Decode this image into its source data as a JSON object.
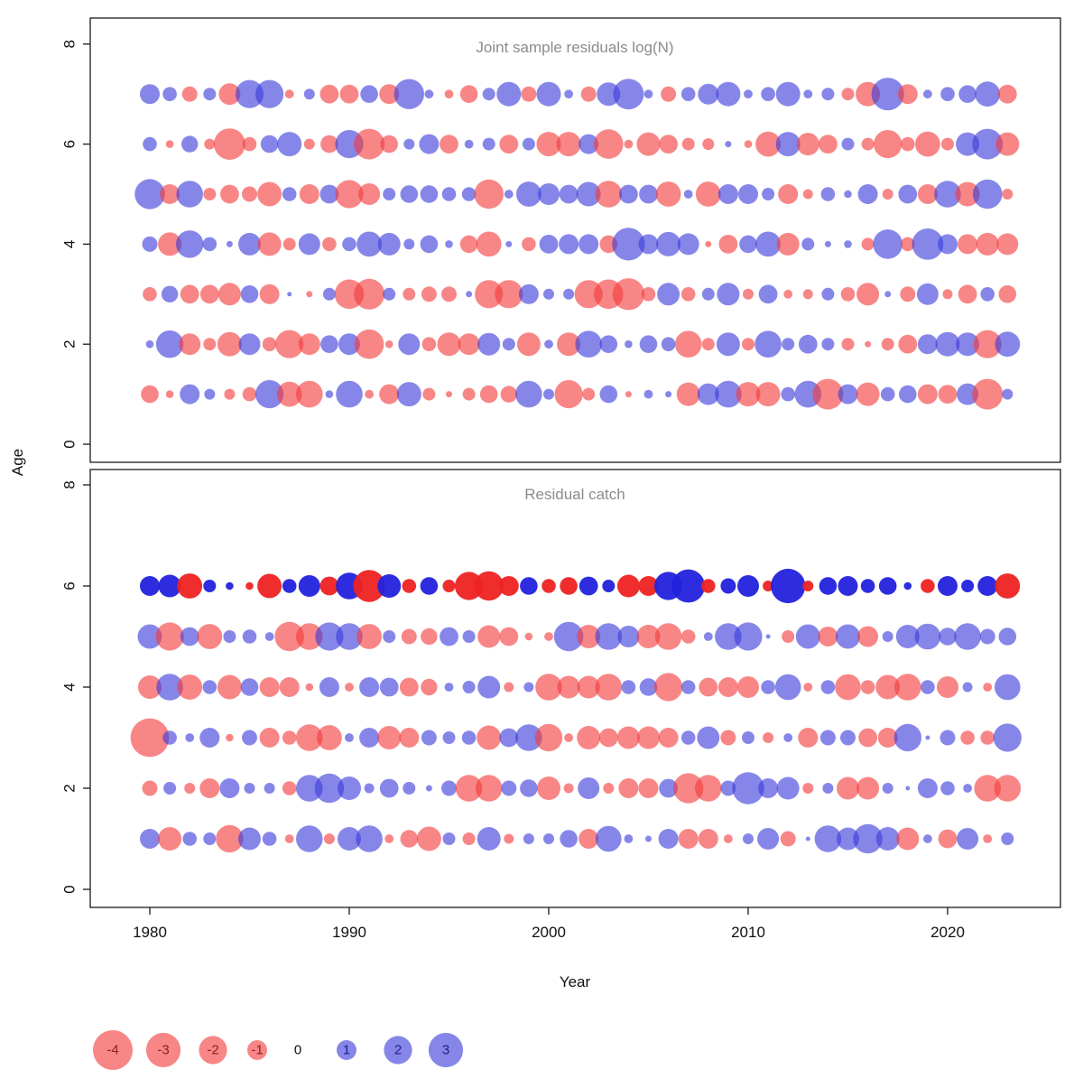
{
  "figure": {
    "xlabel": "Year",
    "ylabel": "Age",
    "xticks": [
      1980,
      1990,
      2000,
      2010,
      2020
    ],
    "yticks": [
      0,
      2,
      4,
      6,
      8
    ]
  },
  "colors": {
    "negative": "#f43b3b",
    "positive": "#3c3cdc",
    "negative_solid": "#ee2222",
    "positive_solid": "#2222dd",
    "bubble_alpha": 0.62,
    "solid_alpha": 0.95,
    "title_gray": "#8c8c8c",
    "legend_negative_text": "#8b1e1e",
    "legend_positive_text": "#1e1e8b",
    "legend_zero_text": "#111111"
  },
  "legend": {
    "items": [
      {
        "label": "-4",
        "value": -4
      },
      {
        "label": "-3",
        "value": -3
      },
      {
        "label": "-2",
        "value": -2
      },
      {
        "label": "-1",
        "value": -1
      },
      {
        "label": "0",
        "value": 0
      },
      {
        "label": "1",
        "value": 1
      },
      {
        "label": "2",
        "value": 2
      },
      {
        "label": "3",
        "value": 3
      }
    ],
    "radius_rule": "radius_px = 11 * sqrt(abs(value))"
  },
  "chart_data": [
    {
      "type": "bubble",
      "title": "Joint sample residuals log(N)",
      "xlabel": "Year",
      "ylabel": "Age",
      "ylim": [
        0,
        8
      ],
      "x": [
        1980,
        1981,
        1982,
        1983,
        1984,
        1985,
        1986,
        1987,
        1988,
        1989,
        1990,
        1991,
        1992,
        1993,
        1994,
        1995,
        1996,
        1997,
        1998,
        1999,
        2000,
        2001,
        2002,
        2003,
        2004,
        2005,
        2006,
        2007,
        2008,
        2009,
        2010,
        2011,
        2012,
        2013,
        2014,
        2015,
        2016,
        2017,
        2018,
        2019,
        2020,
        2021,
        2022,
        2023
      ],
      "series": [
        {
          "name": "age-7",
          "age": 7,
          "values": [
            1,
            0.5,
            -0.6,
            0.4,
            -1.2,
            2,
            2,
            -0.2,
            0.3,
            -0.9,
            -0.9,
            0.8,
            -1,
            2.3,
            0.2,
            -0.2,
            -0.8,
            0.4,
            1.5,
            -0.6,
            1.5,
            0.2,
            -0.6,
            1.4,
            2.4,
            0.2,
            -0.6,
            0.5,
            1.1,
            1.5,
            0.2,
            0.5,
            1.5,
            0.2,
            0.4,
            -0.4,
            -1.5,
            2.7,
            -1,
            0.2,
            0.5,
            0.8,
            1.6,
            -0.9
          ]
        },
        {
          "name": "age-6",
          "age": 6,
          "values": [
            0.5,
            -0.15,
            0.7,
            -0.3,
            -2.5,
            -0.5,
            0.8,
            1.5,
            -0.3,
            -0.8,
            2,
            -2.4,
            -0.8,
            0.3,
            1,
            -0.9,
            0.2,
            0.4,
            -0.9,
            0.4,
            -1.5,
            -1.5,
            1,
            -2.2,
            -0.2,
            -1.4,
            -0.9,
            -0.4,
            -0.35,
            0.1,
            -0.15,
            -1.6,
            1.5,
            -1.3,
            -0.9,
            0.4,
            -0.4,
            -2,
            -0.5,
            -1.6,
            -0.4,
            1.4,
            2.4,
            -1.4
          ]
        },
        {
          "name": "age-5",
          "age": 5,
          "values": [
            2.3,
            -1,
            1.8,
            -0.4,
            -0.9,
            -0.6,
            -1.5,
            0.5,
            -1,
            0.9,
            -2,
            -1.2,
            0.4,
            0.8,
            0.8,
            0.5,
            0.5,
            -2.2,
            0.2,
            1.6,
            1.2,
            0.9,
            1.5,
            -1.8,
            0.9,
            0.9,
            -1.6,
            0.2,
            -1.6,
            1,
            1,
            0.4,
            -1,
            -0.25,
            0.5,
            0.15,
            1,
            -0.3,
            0.9,
            -1,
            1.8,
            -1.5,
            2.2,
            -0.3
          ]
        },
        {
          "name": "age-4",
          "age": 4,
          "values": [
            0.6,
            -1.4,
            1.9,
            0.5,
            0.1,
            1.3,
            -1.4,
            -0.4,
            1.2,
            -0.5,
            0.5,
            1.6,
            1.3,
            0.3,
            0.8,
            0.15,
            -0.8,
            -1.6,
            0.1,
            -0.5,
            0.9,
            1,
            1,
            -0.8,
            2.7,
            1,
            1.5,
            1.2,
            -0.1,
            -0.9,
            0.8,
            1.6,
            -1.3,
            0.4,
            0.1,
            0.15,
            -0.4,
            2.2,
            -0.5,
            2.5,
            1,
            -1,
            -1.3,
            -1.2
          ]
        },
        {
          "name": "age-3",
          "age": 3,
          "values": [
            -0.5,
            0.7,
            -0.9,
            -0.9,
            -1.3,
            0.8,
            -1,
            0.05,
            -0.1,
            0.4,
            -2.2,
            -2.4,
            0.4,
            -0.4,
            -0.6,
            -0.6,
            0.1,
            -2,
            -2,
            1,
            0.3,
            0.3,
            -2,
            -2.2,
            -2.6,
            -0.5,
            1.3,
            -0.5,
            0.4,
            1.3,
            -0.3,
            0.9,
            -0.2,
            -0.25,
            0.4,
            -0.5,
            -1.3,
            0.1,
            -0.6,
            1.2,
            -0.25,
            -0.9,
            0.5,
            -0.8
          ]
        },
        {
          "name": "age-2",
          "age": 2,
          "values": [
            0.15,
            1.9,
            -1.2,
            -0.4,
            -1.5,
            1.2,
            -0.5,
            -2,
            -1.2,
            0.8,
            1.2,
            -2.2,
            -0.15,
            1.2,
            -0.5,
            -1.4,
            -1.2,
            1.3,
            0.4,
            -1.4,
            0.2,
            -1.4,
            1.8,
            0.8,
            0.15,
            0.8,
            0.5,
            -1.8,
            -0.4,
            1.4,
            -0.4,
            1.8,
            0.4,
            0.9,
            0.4,
            -0.4,
            -0.1,
            -0.4,
            -0.9,
            1,
            1.5,
            1.4,
            -2,
            1.6
          ]
        },
        {
          "name": "age-1",
          "age": 1,
          "values": [
            -0.8,
            -0.15,
            1,
            0.3,
            -0.3,
            -0.5,
            2,
            -1.6,
            -1.8,
            0.15,
            1.8,
            -0.2,
            -1,
            1.5,
            -0.4,
            -0.1,
            -0.4,
            -0.8,
            -0.7,
            1.8,
            0.3,
            -2,
            -0.4,
            0.8,
            -0.1,
            0.2,
            0.1,
            -1.4,
            1.2,
            1.8,
            -1.5,
            -1.5,
            0.5,
            1.8,
            -2.4,
            1,
            -1.4,
            0.5,
            0.8,
            -1,
            -0.9,
            1.2,
            -2.4,
            0.3
          ]
        }
      ]
    },
    {
      "type": "bubble",
      "title": "Residual catch",
      "xlabel": "Year",
      "ylabel": "Age",
      "ylim": [
        0,
        8
      ],
      "x": [
        1980,
        1981,
        1982,
        1983,
        1984,
        1985,
        1986,
        1987,
        1988,
        1989,
        1990,
        1991,
        1992,
        1993,
        1994,
        1995,
        1996,
        1997,
        1998,
        1999,
        2000,
        2001,
        2002,
        2003,
        2004,
        2005,
        2006,
        2007,
        2008,
        2009,
        2010,
        2011,
        2012,
        2013,
        2014,
        2015,
        2016,
        2017,
        2018,
        2019,
        2020,
        2021,
        2022,
        2023
      ],
      "series": [
        {
          "name": "age-6",
          "age": 6,
          "solid": true,
          "values": [
            1,
            1.3,
            -1.6,
            0.4,
            0.15,
            -0.15,
            -1.5,
            0.5,
            1.2,
            -0.9,
            1.8,
            -2.6,
            1.4,
            -0.5,
            0.8,
            -0.4,
            -2,
            -2.2,
            -1,
            0.8,
            -0.5,
            -0.8,
            0.9,
            0.4,
            -1.3,
            -1,
            2,
            2.8,
            -0.5,
            0.6,
            1.2,
            -0.3,
            3,
            -0.3,
            0.8,
            1,
            0.5,
            0.8,
            0.15,
            -0.5,
            1,
            0.4,
            1,
            -1.6
          ]
        },
        {
          "name": "age-5",
          "age": 5,
          "values": [
            1.5,
            -2,
            0.9,
            -1.6,
            0.4,
            0.5,
            0.2,
            -2.2,
            -1.8,
            2,
            1.8,
            -1.6,
            0.4,
            -0.6,
            -0.7,
            0.9,
            0.4,
            -1.3,
            -0.9,
            -0.15,
            -0.2,
            2.2,
            -1.4,
            1.8,
            1.2,
            -1.4,
            -1.8,
            -0.5,
            0.2,
            1.8,
            2,
            0.05,
            -0.4,
            1.5,
            -1,
            1.5,
            -1.1,
            0.3,
            1.4,
            1.7,
            0.8,
            1.8,
            0.6,
            0.8
          ]
        },
        {
          "name": "age-4",
          "age": 4,
          "values": [
            -1.4,
            1.8,
            -1.6,
            0.5,
            -1.5,
            0.8,
            -1,
            -1,
            -0.15,
            1,
            -0.2,
            1,
            0.9,
            -0.9,
            -0.7,
            0.2,
            0.4,
            1.3,
            -0.25,
            0.25,
            -1.8,
            -1.3,
            -1.3,
            -1.8,
            0.5,
            0.8,
            -2,
            0.5,
            -0.9,
            -1,
            -1.2,
            0.5,
            1.7,
            -0.2,
            0.5,
            -1.7,
            -0.5,
            -1.5,
            -1.8,
            0.5,
            -1.2,
            0.25,
            -0.2,
            1.7
          ]
        },
        {
          "name": "age-3",
          "age": 3,
          "values": [
            -3.8,
            0.5,
            0.2,
            1,
            -0.15,
            0.6,
            -1,
            -0.5,
            -1.8,
            -1.6,
            0.2,
            1,
            -1.4,
            -1,
            0.6,
            0.4,
            0.5,
            -1.5,
            0.9,
            1.8,
            -1.9,
            -0.2,
            -1.4,
            -0.9,
            -1.3,
            -1.3,
            -1,
            0.5,
            1.3,
            -0.6,
            0.4,
            -0.3,
            0.2,
            -1,
            0.6,
            0.6,
            -0.9,
            -1,
            1.9,
            0.05,
            0.6,
            -0.5,
            -0.5,
            2
          ]
        },
        {
          "name": "age-2",
          "age": 2,
          "values": [
            -0.6,
            0.4,
            -0.3,
            -1,
            1,
            0.3,
            0.3,
            -0.5,
            1.8,
            2.2,
            1.4,
            0.25,
            0.9,
            0.4,
            0.1,
            0.6,
            -1.8,
            -1.8,
            0.6,
            0.8,
            -1.4,
            -0.25,
            1.2,
            -0.3,
            -1,
            -1,
            0.9,
            -2.3,
            -1.8,
            0.6,
            2.6,
            1,
            1.3,
            -0.3,
            0.3,
            -1.3,
            -1.3,
            0.3,
            0.05,
            1,
            0.5,
            0.2,
            -1.8,
            -1.8
          ]
        },
        {
          "name": "age-1",
          "age": 1,
          "values": [
            1,
            -1.4,
            0.5,
            0.4,
            -1.9,
            1.3,
            0.5,
            -0.2,
            1.8,
            -0.3,
            1.4,
            1.8,
            -0.2,
            -0.8,
            -1.5,
            0.4,
            -0.4,
            1.4,
            -0.25,
            0.3,
            0.3,
            0.8,
            -1,
            1.7,
            0.2,
            0.1,
            1,
            -1,
            -1,
            -0.2,
            0.3,
            1.2,
            -0.6,
            0.05,
            1.8,
            1.3,
            2.2,
            1.4,
            -1.3,
            0.2,
            -0.9,
            1.2,
            -0.2,
            0.4
          ]
        }
      ]
    }
  ]
}
